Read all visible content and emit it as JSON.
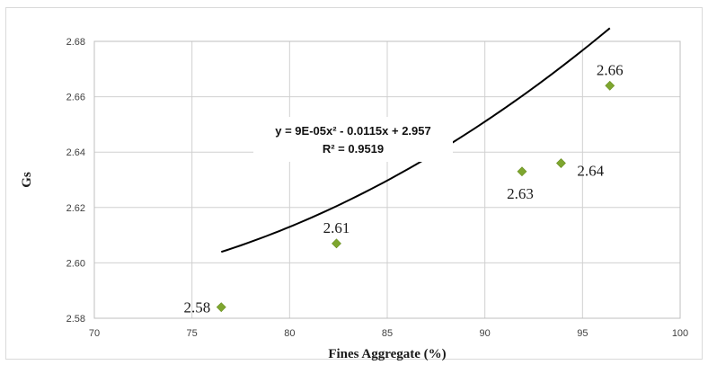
{
  "chart_data": {
    "type": "scatter",
    "xlabel": "Fines Aggregate (%)",
    "ylabel": "Gs",
    "xlim": [
      70,
      100
    ],
    "ylim": [
      2.58,
      2.68
    ],
    "xticks": [
      "70",
      "75",
      "80",
      "85",
      "90",
      "95",
      "100"
    ],
    "yticks": [
      "2.58",
      "2.60",
      "2.62",
      "2.64",
      "2.66",
      "2.68"
    ],
    "grid": true,
    "marker_color": "#7ea62f",
    "trendline_color": "#000000",
    "points": [
      {
        "x": 76.5,
        "y": 2.584,
        "label": "2.58",
        "label_pos": "left"
      },
      {
        "x": 82.4,
        "y": 2.607,
        "label": "2.61",
        "label_pos": "above"
      },
      {
        "x": 91.9,
        "y": 2.633,
        "label": "2.63",
        "label_pos": "below"
      },
      {
        "x": 93.9,
        "y": 2.636,
        "label": "2.64",
        "label_pos": "below-right"
      },
      {
        "x": 96.4,
        "y": 2.664,
        "label": "2.66",
        "label_pos": "above"
      }
    ],
    "trendline": {
      "type": "polynomial",
      "coefficients": [
        9e-05,
        -0.0115,
        2.957
      ],
      "x_range": [
        76.5,
        96.4
      ],
      "equation": "y = 9E-05x² - 0.0115x + 2.957",
      "r_squared": "R² = 0.9519"
    }
  }
}
